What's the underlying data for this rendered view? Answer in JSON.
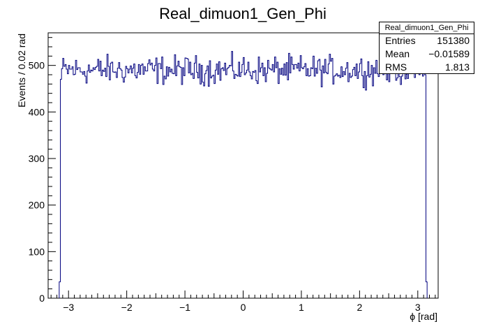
{
  "chart_data": {
    "type": "histogram-step",
    "title": "Real_dimuon1_Gen_Phi",
    "xlabel": "ϕ [rad]",
    "ylabel": "Events / 0.02 rad",
    "xlim": [
      -3.35,
      3.35
    ],
    "ylim": [
      0,
      570
    ],
    "bin_width": 0.02,
    "x_ticks": [
      -3,
      -2,
      -1,
      0,
      1,
      2,
      3
    ],
    "x_tick_labels": [
      "−3",
      "−2",
      "−1",
      "0",
      "1",
      "2",
      "3"
    ],
    "y_ticks": [
      0,
      100,
      200,
      300,
      400,
      500
    ],
    "y_tick_labels": [
      "0",
      "100",
      "200",
      "300",
      "400",
      "500"
    ],
    "line_color": "#00007f",
    "edge_bins": [
      {
        "x_low": -3.16,
        "x_high": -3.14,
        "value": 35
      },
      {
        "x_low": -3.14,
        "x_high": -3.12,
        "value": 470
      },
      {
        "x_low": 3.12,
        "x_high": 3.14,
        "value": 480
      },
      {
        "x_low": 3.14,
        "x_high": 3.16,
        "value": 35
      }
    ],
    "mean_level": 490
  },
  "stats": {
    "title": "Real_dimuon1_Gen_Phi",
    "rows": [
      {
        "label": "Entries",
        "value": "151380"
      },
      {
        "label": "Mean",
        "value": "−0.01589"
      },
      {
        "label": "RMS",
        "value": "1.813"
      }
    ]
  }
}
